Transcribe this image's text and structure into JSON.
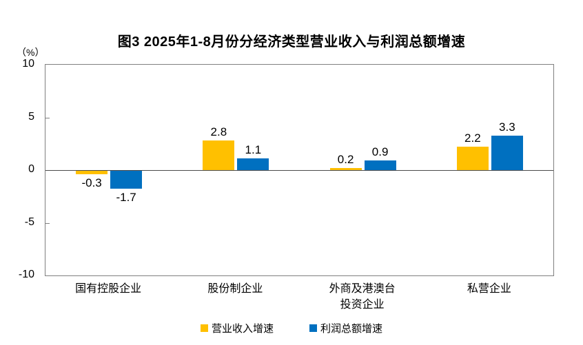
{
  "title": "图3 2025年1-8月份分经济类型营业收入与利润总额增速",
  "unit_label": "（%）",
  "colors": {
    "revenue_series": "#FFC000",
    "profit_series": "#0070C0",
    "plot_frame": "#7f7f7f",
    "zero_line": "#4a4a4a"
  },
  "legend": [
    {
      "label": "营业收入增速",
      "color": "#FFC000"
    },
    {
      "label": "利润总额增速",
      "color": "#0070C0"
    }
  ],
  "chart_data": {
    "type": "bar",
    "title": "图3 2025年1-8月份分经济类型营业收入与利润总额增速",
    "categories": [
      "国有控股企业",
      "股份制企业",
      "外商及港澳台\n投资企业",
      "私营企业"
    ],
    "series": [
      {
        "name": "营业收入增速",
        "color": "#FFC000",
        "values": [
          -0.3,
          2.8,
          0.2,
          2.2
        ]
      },
      {
        "name": "利润总额增速",
        "color": "#0070C0",
        "values": [
          -1.7,
          1.1,
          0.9,
          3.3
        ]
      }
    ],
    "data_labels": [
      [
        "-0.3",
        "2.8",
        "0.2",
        "2.2"
      ],
      [
        "-1.7",
        "1.1",
        "0.9",
        "3.3"
      ]
    ],
    "xlabel": "",
    "ylabel": "（%）",
    "ylim": [
      -10,
      10
    ],
    "yticks": [
      10,
      5,
      0,
      -5,
      -10
    ],
    "grid": false,
    "legend_position": "bottom"
  }
}
